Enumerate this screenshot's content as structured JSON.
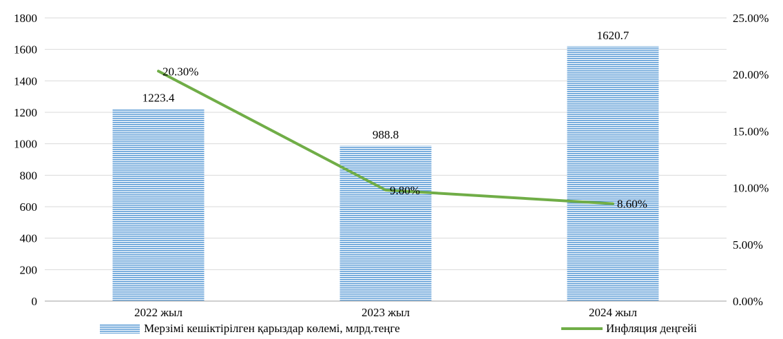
{
  "chart_data": {
    "type": "bar",
    "categories": [
      "2022 жыл",
      "2023 жыл",
      "2024 жыл"
    ],
    "series": [
      {
        "name": "Мерзімі кешіктірілген қарыздар көлемі, млрд.теңге",
        "type": "bar",
        "axis": "left",
        "values": [
          1223.4,
          988.8,
          1620.7
        ],
        "data_labels": [
          "1223.4",
          "988.8",
          "1620.7"
        ],
        "color": "#5b9bd5"
      },
      {
        "name": "Инфляция деңгейі",
        "type": "line",
        "axis": "right",
        "values": [
          20.3,
          9.8,
          8.6
        ],
        "data_labels": [
          "20.30%",
          "9.80%",
          "8.60%"
        ],
        "color": "#70ad47"
      }
    ],
    "left_axis": {
      "ylim": [
        0,
        1800
      ],
      "ticks": [
        "0",
        "200",
        "400",
        "600",
        "800",
        "1000",
        "1200",
        "1400",
        "1600",
        "1800"
      ]
    },
    "right_axis": {
      "ylim": [
        0,
        25
      ],
      "ticks": [
        "0.00%",
        "5.00%",
        "10.00%",
        "15.00%",
        "20.00%",
        "25.00%"
      ]
    },
    "grid": true,
    "legend_position": "bottom"
  }
}
